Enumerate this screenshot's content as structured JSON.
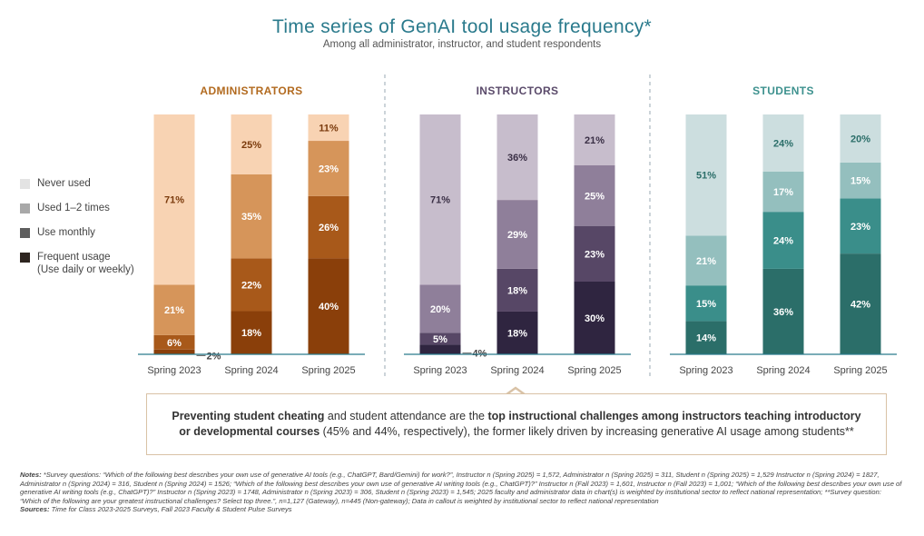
{
  "title": "Time series of GenAI tool usage frequency*",
  "subtitle": "Among all administrator, instructor, and student respondents",
  "legend": [
    {
      "label": "Never used",
      "sub": ""
    },
    {
      "label": "Used 1–2 times",
      "sub": ""
    },
    {
      "label": "Use monthly",
      "sub": ""
    },
    {
      "label": "Frequent usage",
      "sub": "(Use daily or weekly)"
    }
  ],
  "chart_data": {
    "type": "bar",
    "stacked": true,
    "percent_scale": true,
    "categories": [
      "Spring 2023",
      "Spring 2024",
      "Spring 2025"
    ],
    "series_order": [
      "Frequent usage",
      "Use monthly",
      "Used 1–2 times",
      "Never used"
    ],
    "groups": [
      {
        "name": "ADMINISTRATORS",
        "title_color": "#b26a1f",
        "colors": [
          "#8a3f0a",
          "#a8591a",
          "#d6955a",
          "#f8d3b3"
        ],
        "bars": [
          {
            "category": "Spring 2023",
            "values": [
              2,
              6,
              21,
              71
            ],
            "labels": [
              "2%",
              "6%",
              "21%",
              "71%"
            ]
          },
          {
            "category": "Spring 2024",
            "values": [
              18,
              22,
              35,
              25
            ],
            "labels": [
              "18%",
              "22%",
              "35%",
              "25%"
            ]
          },
          {
            "category": "Spring 2025",
            "values": [
              40,
              26,
              23,
              11
            ],
            "labels": [
              "40%",
              "26%",
              "23%",
              "11%"
            ]
          }
        ]
      },
      {
        "name": "INSTRUCTORS",
        "title_color": "#5a4a6a",
        "colors": [
          "#2f2540",
          "#574766",
          "#8f7f9a",
          "#c7bdcc"
        ],
        "bars": [
          {
            "category": "Spring 2023",
            "values": [
              4,
              5,
              20,
              71
            ],
            "labels": [
              "4%",
              "5%",
              "20%",
              "71%"
            ]
          },
          {
            "category": "Spring 2024",
            "values": [
              18,
              18,
              29,
              36
            ],
            "labels": [
              "18%",
              "18%",
              "29%",
              "36%"
            ]
          },
          {
            "category": "Spring 2025",
            "values": [
              30,
              23,
              25,
              21
            ],
            "labels": [
              "30%",
              "23%",
              "25%",
              "21%"
            ]
          }
        ]
      },
      {
        "name": "STUDENTS",
        "title_color": "#3d918e",
        "colors": [
          "#2b6e69",
          "#3a8e8a",
          "#94bfbe",
          "#ccdedf"
        ],
        "bars": [
          {
            "category": "Spring 2023",
            "values": [
              14,
              15,
              21,
              51
            ],
            "labels": [
              "14%",
              "15%",
              "21%",
              "51%"
            ]
          },
          {
            "category": "Spring 2024",
            "values": [
              36,
              24,
              17,
              24
            ],
            "labels": [
              "36%",
              "24%",
              "17%",
              "24%"
            ]
          },
          {
            "category": "Spring 2025",
            "values": [
              42,
              23,
              15,
              20
            ],
            "labels": [
              "42%",
              "23%",
              "15%",
              "20%"
            ]
          }
        ]
      }
    ]
  },
  "callout": {
    "bold1": "Preventing student cheating",
    "text1": " and student attendance are the ",
    "bold2": "top instructional challenges among instructors teaching introductory or developmental courses",
    "text2": " (45% and 44%, respectively), the former likely driven by increasing generative AI usage among students**"
  },
  "notes": {
    "notes_label": "Notes:",
    "notes_text": " *Survey questions: “Which of the following best describes your own use of generative AI tools (e.g., ChatGPT, Bard/Gemini) for work?”, Instructor n (Spring 2025) = 1,572, Administrator n (Spring 2025) = 311, Student n (Spring 2025) = 1,529 Instructor n (Spring 2024) = 1827, Administrator n (Spring 2024) = 316, Student n (Spring 2024) = 1526; “Which of the following best describes your own use of generative AI writing tools (e.g., ChatGPT)?” Instructor n (Fall 2023) = 1,601, Instructor n (Fall 2023) = 1,001; “Which of the following best describes your own use of generative AI writing tools (e.g., ChatGPT)?” Instructor n (Spring 2023) = 1748, Administrator n (Spring 2023) = 306, Student n (Spring 2023) = 1,545; 2025 faculty and administrator data in chart(s) is weighted by institutional sector to reflect national representation; **Survey question: “Which of the following are your greatest instructional challenges? Select top three.”, n=1,127 (Gateway), n=445 (Non-gateway); Data in callout is weighted by institutional sector to reflect national representation",
    "sources_label": "Sources:",
    "sources_text": " Time for Class 2023-2025 Surveys, Fall 2023 Faculty & Student Pulse Surveys"
  },
  "colors": {
    "axis": "#2a7a8c",
    "divider": "#9aa9b3",
    "callout_border": "#d9c2a6"
  }
}
